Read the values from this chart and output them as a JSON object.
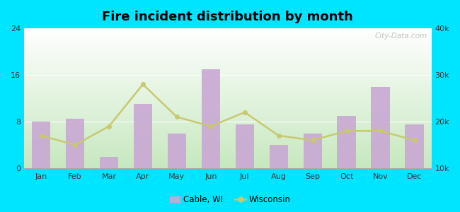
{
  "title": "Fire incident distribution by month",
  "months": [
    "Jan",
    "Feb",
    "Mar",
    "Apr",
    "May",
    "Jun",
    "Jul",
    "Aug",
    "Sep",
    "Oct",
    "Nov",
    "Dec"
  ],
  "cable_wi": [
    8,
    8.5,
    2,
    11,
    6,
    17,
    7.5,
    4,
    6,
    9,
    14,
    7.5
  ],
  "wisconsin": [
    17000,
    15000,
    19000,
    28000,
    21000,
    19000,
    22000,
    17000,
    16000,
    18000,
    18000,
    16000
  ],
  "bar_color": "#c9a8d4",
  "line_color": "#c8c870",
  "line_marker": "o",
  "bar_alpha": 0.9,
  "ylim_left": [
    0,
    24
  ],
  "ylim_right": [
    10000,
    40000
  ],
  "yticks_left": [
    0,
    8,
    16,
    24
  ],
  "yticks_right": [
    10000,
    20000,
    30000,
    40000
  ],
  "ytick_labels_right": [
    "10k",
    "20k",
    "30k",
    "40k"
  ],
  "outer_bg": "#00e5ff",
  "legend_cable": "Cable, WI",
  "legend_wisconsin": "Wisconsin",
  "watermark": "City-Data.com"
}
